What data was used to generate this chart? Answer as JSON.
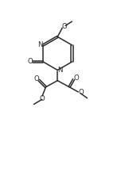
{
  "bg_color": "#ffffff",
  "line_color": "#2a2a2a",
  "lw": 1.1,
  "font_size": 6.2,
  "xlim": [
    0,
    10
  ],
  "ylim": [
    0,
    14
  ]
}
